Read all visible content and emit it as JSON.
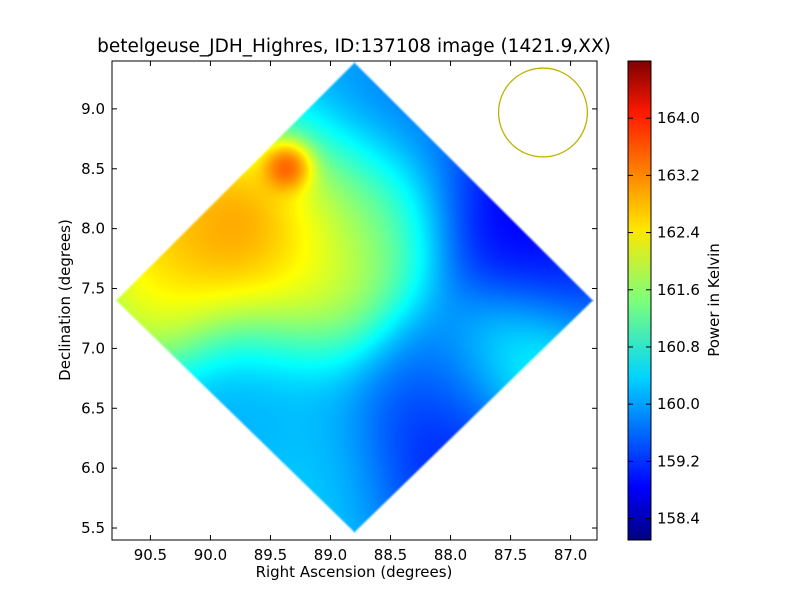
{
  "chart_data": {
    "type": "heatmap",
    "title": "betelgeuse_JDH_Highres, ID:137108 image (1421.9,XX)",
    "xlabel": "Right Ascension (degrees)",
    "ylabel": "Declination (degrees)",
    "xlim": [
      90.82,
      86.78
    ],
    "ylim": [
      5.4,
      9.4
    ],
    "x_inverted": true,
    "x_ticks": [
      90.5,
      90.0,
      89.5,
      89.0,
      88.5,
      88.0,
      87.5,
      87.0
    ],
    "x_tick_labels": [
      "90.5",
      "90.0",
      "89.5",
      "89.0",
      "88.5",
      "88.0",
      "87.5",
      "87.0"
    ],
    "y_ticks": [
      5.5,
      6.0,
      6.5,
      7.0,
      7.5,
      8.0,
      8.5,
      9.0
    ],
    "y_tick_labels": [
      "5.5",
      "6.0",
      "6.5",
      "7.0",
      "7.5",
      "8.0",
      "8.5",
      "9.0"
    ],
    "colorbar": {
      "label": "Power in Kelvin",
      "colormap": "jet",
      "range": [
        158.1,
        164.8
      ],
      "ticks": [
        158.4,
        159.2,
        160.0,
        160.8,
        161.6,
        162.4,
        163.2,
        164.0
      ],
      "tick_labels": [
        "158.4",
        "159.2",
        "160.0",
        "160.8",
        "161.6",
        "162.4",
        "163.2",
        "164.0"
      ]
    },
    "map_region": {
      "shape": "diamond",
      "center": [
        88.8,
        7.4
      ],
      "corners": {
        "left": [
          90.8,
          7.4
        ],
        "top": [
          88.8,
          9.4
        ],
        "right": [
          86.8,
          7.4
        ],
        "bottom": [
          88.8,
          5.45
        ]
      }
    },
    "beam": {
      "shape": "circle",
      "center": [
        87.23,
        8.97
      ],
      "radius_deg": 0.37,
      "color": "#c0b000"
    },
    "features": [
      {
        "ra": 89.35,
        "dec": 8.5,
        "value": 164.7,
        "spread_deg": 0.12
      },
      {
        "ra": 89.7,
        "dec": 7.95,
        "value": 163.9,
        "spread_deg": 0.45
      },
      {
        "ra": 90.3,
        "dec": 7.85,
        "value": 163.0,
        "spread_deg": 0.35
      },
      {
        "ra": 89.2,
        "dec": 7.6,
        "value": 162.5,
        "spread_deg": 0.45
      },
      {
        "ra": 90.4,
        "dec": 7.4,
        "value": 162.5,
        "spread_deg": 0.35
      },
      {
        "ra": 88.7,
        "dec": 8.1,
        "value": 161.7,
        "spread_deg": 0.45
      },
      {
        "ra": 87.4,
        "dec": 7.0,
        "value": 161.2,
        "spread_deg": 0.35
      },
      {
        "ra": 88.3,
        "dec": 9.0,
        "value": 159.6,
        "spread_deg": 0.45
      },
      {
        "ra": 87.5,
        "dec": 8.2,
        "value": 158.4,
        "spread_deg": 0.5
      },
      {
        "ra": 87.2,
        "dec": 7.6,
        "value": 158.9,
        "spread_deg": 0.4
      },
      {
        "ra": 88.2,
        "dec": 6.15,
        "value": 158.7,
        "spread_deg": 0.45
      },
      {
        "ra": 88.0,
        "dec": 6.8,
        "value": 159.6,
        "spread_deg": 0.4
      },
      {
        "ra": 89.6,
        "dec": 6.6,
        "value": 160.0,
        "spread_deg": 0.5
      },
      {
        "ra": 89.0,
        "dec": 6.0,
        "value": 160.4,
        "spread_deg": 0.4
      }
    ],
    "background_value": 160.3
  }
}
